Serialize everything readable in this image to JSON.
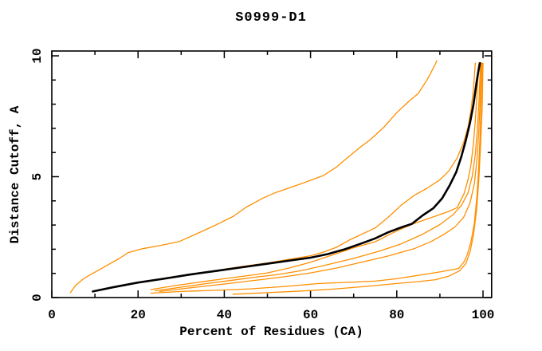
{
  "window": {
    "title": "S0999-D1"
  },
  "chart_data": {
    "type": "line",
    "title": "S0999-D1",
    "xlabel": "Percent of Residues (CA)",
    "ylabel": "Distance Cutoff, A",
    "xlim": [
      0,
      102
    ],
    "ylim": [
      0,
      10.2
    ],
    "x_major_ticks": [
      0,
      20,
      40,
      60,
      80,
      100
    ],
    "x_minor_ticks": [
      10,
      30,
      50,
      70,
      90
    ],
    "y_major_ticks": [
      0,
      5,
      10
    ],
    "y_minor_ticks": [
      1,
      2,
      3,
      4,
      6,
      7,
      8,
      9
    ],
    "grid": false,
    "legend": "none",
    "colors": {
      "reference": "#000000",
      "models": "#ff8f00"
    },
    "series": [
      {
        "name": "model-orange-1",
        "color": "#ff8f00",
        "width": 1.3,
        "points": [
          [
            4.3,
            0.2
          ],
          [
            5.5,
            0.5
          ],
          [
            7.5,
            0.8
          ],
          [
            10,
            1.05
          ],
          [
            13,
            1.35
          ],
          [
            15.5,
            1.6
          ],
          [
            17.6,
            1.85
          ],
          [
            21,
            2.02
          ],
          [
            25,
            2.15
          ],
          [
            29.6,
            2.32
          ],
          [
            34,
            2.67
          ],
          [
            38,
            3.0
          ],
          [
            42,
            3.35
          ],
          [
            45,
            3.73
          ],
          [
            49,
            4.12
          ],
          [
            52,
            4.35
          ],
          [
            58,
            4.72
          ],
          [
            63,
            5.05
          ],
          [
            66,
            5.4
          ],
          [
            68,
            5.7
          ],
          [
            71,
            6.15
          ],
          [
            74,
            6.55
          ],
          [
            77,
            7.05
          ],
          [
            80,
            7.65
          ],
          [
            83,
            8.15
          ],
          [
            85,
            8.45
          ],
          [
            87,
            9.0
          ],
          [
            88.5,
            9.5
          ],
          [
            89.3,
            9.8
          ]
        ]
      },
      {
        "name": "model-orange-2",
        "color": "#ff8f00",
        "width": 1.3,
        "points": [
          [
            14.8,
            0.44
          ],
          [
            20,
            0.63
          ],
          [
            26,
            0.8
          ],
          [
            32,
            0.97
          ],
          [
            38,
            1.12
          ],
          [
            44,
            1.28
          ],
          [
            50,
            1.43
          ],
          [
            55,
            1.58
          ],
          [
            60,
            1.73
          ],
          [
            63,
            1.88
          ],
          [
            66,
            2.08
          ],
          [
            69,
            2.38
          ],
          [
            72,
            2.63
          ],
          [
            75,
            2.88
          ],
          [
            78,
            3.32
          ],
          [
            81,
            3.82
          ],
          [
            84,
            4.22
          ],
          [
            87,
            4.52
          ],
          [
            90,
            4.87
          ],
          [
            92,
            5.22
          ],
          [
            94,
            5.77
          ],
          [
            95.5,
            6.42
          ],
          [
            96.5,
            7.05
          ],
          [
            97.2,
            7.75
          ],
          [
            97.8,
            8.65
          ],
          [
            98.2,
            9.7
          ]
        ]
      },
      {
        "name": "model-orange-3",
        "color": "#ff8f00",
        "width": 1.3,
        "points": [
          [
            23,
            0.33
          ],
          [
            28,
            0.48
          ],
          [
            34,
            0.63
          ],
          [
            40,
            0.78
          ],
          [
            46,
            0.92
          ],
          [
            50,
            1.02
          ],
          [
            55,
            1.22
          ],
          [
            60,
            1.46
          ],
          [
            65,
            1.76
          ],
          [
            70,
            2.06
          ],
          [
            75,
            2.31
          ],
          [
            80,
            2.76
          ],
          [
            84,
            3.06
          ],
          [
            88,
            3.31
          ],
          [
            92,
            3.56
          ],
          [
            94,
            3.72
          ],
          [
            95.6,
            4.3
          ],
          [
            96.5,
            4.86
          ],
          [
            97.2,
            5.5
          ],
          [
            97.8,
            6.4
          ],
          [
            98.2,
            7.3
          ],
          [
            98.6,
            8.4
          ],
          [
            99,
            9.7
          ]
        ]
      },
      {
        "name": "model-orange-4",
        "color": "#ff8f00",
        "width": 1.3,
        "points": [
          [
            24,
            0.28
          ],
          [
            30,
            0.43
          ],
          [
            36,
            0.58
          ],
          [
            42,
            0.72
          ],
          [
            48,
            0.86
          ],
          [
            52,
            0.94
          ],
          [
            58,
            1.12
          ],
          [
            64,
            1.36
          ],
          [
            70,
            1.62
          ],
          [
            76,
            1.92
          ],
          [
            81,
            2.22
          ],
          [
            86,
            2.62
          ],
          [
            90,
            3.02
          ],
          [
            93,
            3.42
          ],
          [
            95,
            3.82
          ],
          [
            96.5,
            4.32
          ],
          [
            97.5,
            5.02
          ],
          [
            98.2,
            5.92
          ],
          [
            98.7,
            7.0
          ],
          [
            99.1,
            8.2
          ],
          [
            99.4,
            9.7
          ]
        ]
      },
      {
        "name": "model-orange-5",
        "color": "#ff8f00",
        "width": 1.3,
        "points": [
          [
            25,
            0.25
          ],
          [
            32,
            0.4
          ],
          [
            40,
            0.56
          ],
          [
            48,
            0.73
          ],
          [
            54,
            0.86
          ],
          [
            60,
            1.02
          ],
          [
            66,
            1.22
          ],
          [
            72,
            1.47
          ],
          [
            78,
            1.72
          ],
          [
            84,
            2.02
          ],
          [
            88,
            2.32
          ],
          [
            91,
            2.62
          ],
          [
            93.5,
            2.92
          ],
          [
            95.5,
            3.32
          ],
          [
            97,
            3.92
          ],
          [
            98,
            4.72
          ],
          [
            98.6,
            5.72
          ],
          [
            99,
            6.82
          ],
          [
            99.3,
            8.0
          ],
          [
            99.6,
            9.7
          ]
        ]
      },
      {
        "name": "model-orange-6",
        "color": "#ff8f00",
        "width": 1.3,
        "points": [
          [
            23,
            0.18
          ],
          [
            30,
            0.25
          ],
          [
            38,
            0.3
          ],
          [
            46,
            0.36
          ],
          [
            54,
            0.46
          ],
          [
            62,
            0.58
          ],
          [
            70,
            0.64
          ],
          [
            75,
            0.68
          ],
          [
            80,
            0.78
          ],
          [
            85,
            0.92
          ],
          [
            90,
            1.06
          ],
          [
            94.3,
            1.2
          ],
          [
            95.5,
            1.45
          ],
          [
            96.3,
            1.75
          ],
          [
            97.2,
            2.3
          ],
          [
            98,
            3.1
          ],
          [
            98.6,
            4.2
          ],
          [
            99,
            5.4
          ],
          [
            99.3,
            6.6
          ],
          [
            99.6,
            8.2
          ],
          [
            99.8,
            9.7
          ]
        ]
      },
      {
        "name": "model-orange-7",
        "color": "#ff8f00",
        "width": 1.3,
        "points": [
          [
            42,
            0.14
          ],
          [
            50,
            0.2
          ],
          [
            58,
            0.27
          ],
          [
            66,
            0.36
          ],
          [
            74,
            0.48
          ],
          [
            80,
            0.58
          ],
          [
            85,
            0.66
          ],
          [
            89,
            0.74
          ],
          [
            92,
            0.88
          ],
          [
            94.5,
            1.1
          ],
          [
            96,
            1.4
          ],
          [
            97,
            1.9
          ],
          [
            97.8,
            2.6
          ],
          [
            98.5,
            3.6
          ],
          [
            99,
            4.8
          ],
          [
            99.4,
            6.2
          ],
          [
            99.8,
            7.8
          ],
          [
            100,
            9.7
          ]
        ]
      },
      {
        "name": "model-black-reference",
        "color": "#000000",
        "width": 2.6,
        "points": [
          [
            9.5,
            0.25
          ],
          [
            14,
            0.42
          ],
          [
            20,
            0.62
          ],
          [
            26,
            0.78
          ],
          [
            32,
            0.95
          ],
          [
            38,
            1.1
          ],
          [
            44,
            1.25
          ],
          [
            50,
            1.4
          ],
          [
            56,
            1.55
          ],
          [
            60,
            1.65
          ],
          [
            64,
            1.8
          ],
          [
            68,
            2.0
          ],
          [
            72,
            2.25
          ],
          [
            75,
            2.45
          ],
          [
            78,
            2.7
          ],
          [
            81,
            2.9
          ],
          [
            83.5,
            3.05
          ],
          [
            86,
            3.4
          ],
          [
            88.5,
            3.7
          ],
          [
            90.5,
            4.1
          ],
          [
            92.3,
            4.65
          ],
          [
            93.8,
            5.2
          ],
          [
            95,
            5.85
          ],
          [
            96,
            6.5
          ],
          [
            97,
            7.25
          ],
          [
            97.8,
            8.0
          ],
          [
            98.5,
            8.9
          ],
          [
            99,
            9.45
          ],
          [
            99.3,
            9.7
          ]
        ]
      }
    ]
  }
}
